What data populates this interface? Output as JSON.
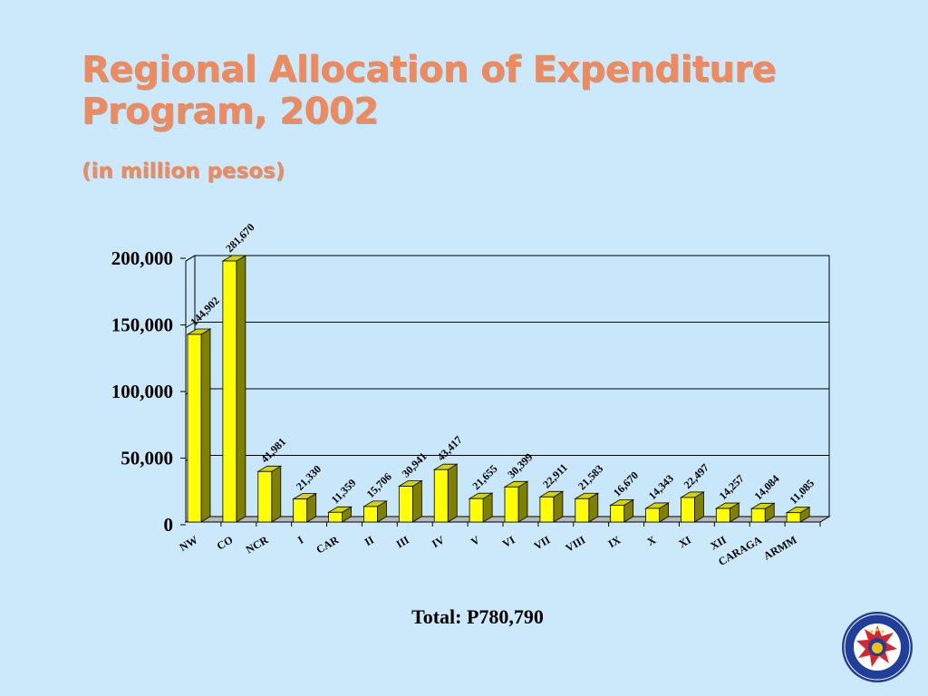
{
  "slide": {
    "title": "Regional Allocation of Expenditure Program, 2002",
    "subtitle": "(in million pesos)",
    "total": "Total: P780,790"
  },
  "colors": {
    "background": "#cce9fb",
    "title": "#f08a5d",
    "bar_front": "#ffff00",
    "bar_side": "#808000",
    "bar_top": "#d4d400"
  },
  "chart_data": {
    "type": "bar",
    "title": "",
    "xlabel": "",
    "ylabel": "",
    "ylim": [
      0,
      200000
    ],
    "yticks": [
      0,
      50000,
      100000,
      150000,
      200000
    ],
    "ytick_labels": [
      "0",
      "50,000",
      "100,000",
      "150,000",
      "200,000"
    ],
    "grid": true,
    "categories": [
      "NW",
      "CO",
      "NCR",
      "I",
      "CAR",
      "II",
      "III",
      "IV",
      "V",
      "VI",
      "VII",
      "VIII",
      "IX",
      "X",
      "XI",
      "XII",
      "CARAGA",
      "ARMM"
    ],
    "values": [
      144902,
      281670,
      41981,
      21330,
      11359,
      15706,
      30941,
      43417,
      21655,
      30399,
      22911,
      21583,
      16670,
      14343,
      22497,
      14257,
      14084,
      11085
    ],
    "value_labels": [
      "144,902",
      "281,670",
      "41,981",
      "21,330",
      "11,359",
      "15,706",
      "30,941",
      "43,417",
      "21,655",
      "30,399",
      "22,911",
      "21,583",
      "16,670",
      "14,343",
      "22,497",
      "14,257",
      "14,084",
      "11,085"
    ]
  }
}
